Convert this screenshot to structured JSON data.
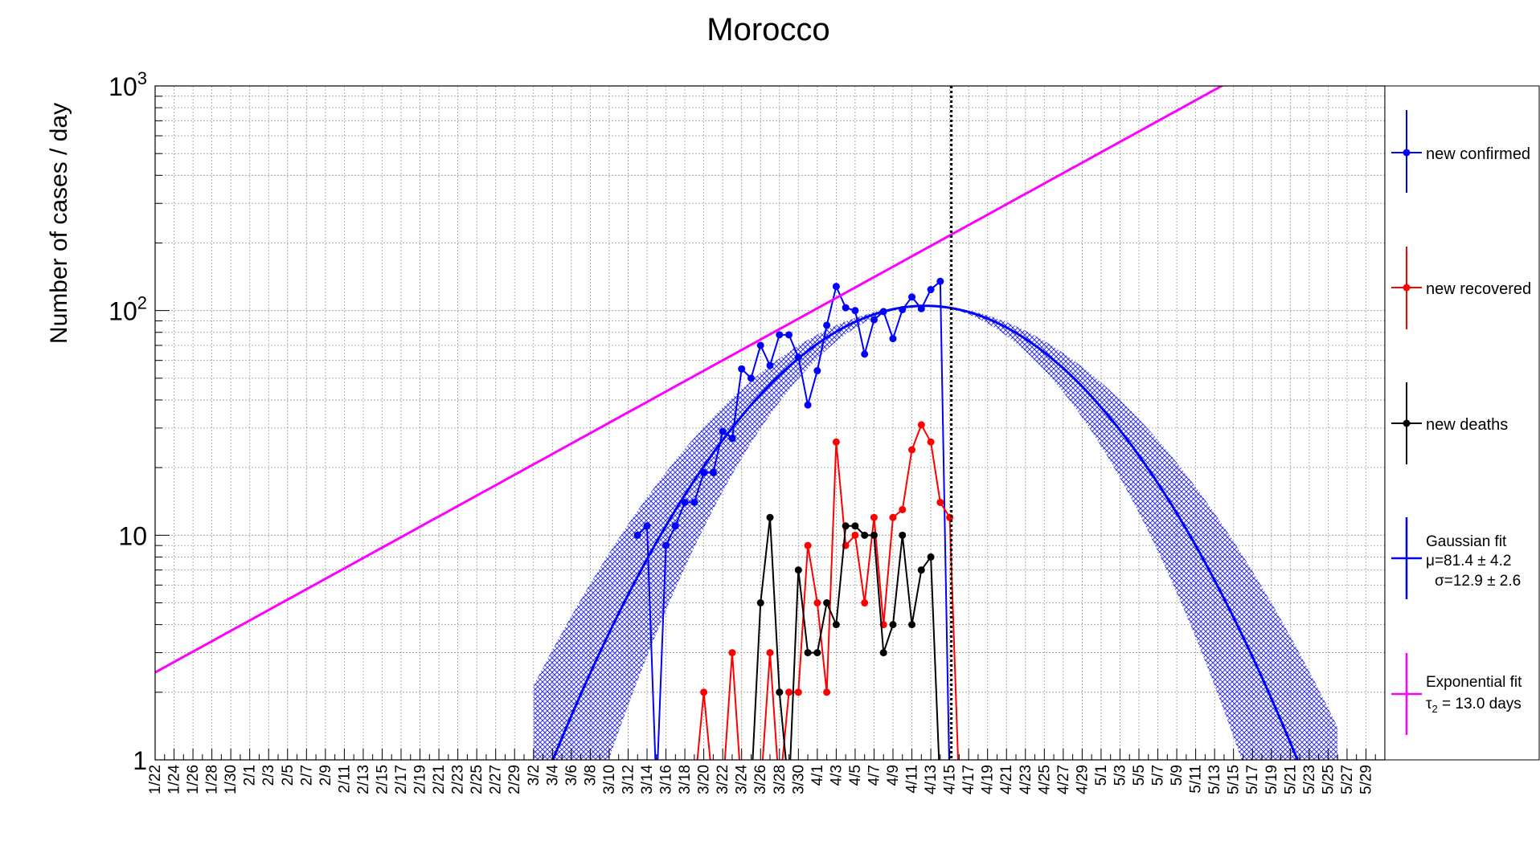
{
  "chart_data": {
    "type": "line",
    "title": "Morocco",
    "ylabel": "Number of cases / day",
    "xlabel": "",
    "yscale": "log",
    "ylim": [
      1,
      1000
    ],
    "xlim_days": [
      0,
      130
    ],
    "y_ticks": [
      {
        "value": 1,
        "base": "1",
        "exp": ""
      },
      {
        "value": 10,
        "base": "10",
        "exp": ""
      },
      {
        "value": 100,
        "base": "10",
        "exp": "2"
      },
      {
        "value": 1000,
        "base": "10",
        "exp": "3"
      }
    ],
    "date_labels": [
      "1/22",
      "1/24",
      "1/26",
      "1/28",
      "1/30",
      "2/1",
      "2/3",
      "2/5",
      "2/7",
      "2/9",
      "2/11",
      "2/13",
      "2/15",
      "2/17",
      "2/19",
      "2/21",
      "2/23",
      "2/25",
      "2/27",
      "2/29",
      "3/2",
      "3/4",
      "3/6",
      "3/8",
      "3/10",
      "3/12",
      "3/14",
      "3/16",
      "3/18",
      "3/20",
      "3/22",
      "3/24",
      "3/26",
      "3/28",
      "3/30",
      "4/1",
      "4/3",
      "4/5",
      "4/7",
      "4/9",
      "4/11",
      "4/13",
      "4/15",
      "4/17",
      "4/19",
      "4/21",
      "4/23",
      "4/25",
      "4/27",
      "4/29",
      "5/1",
      "5/3",
      "5/5",
      "5/7",
      "5/9",
      "5/11",
      "5/13",
      "5/15",
      "5/17",
      "5/19",
      "5/21",
      "5/23",
      "5/25",
      "5/27",
      "5/29"
    ],
    "date_label_days": [
      0,
      2,
      4,
      6,
      8,
      10,
      12,
      14,
      16,
      18,
      20,
      22,
      24,
      26,
      28,
      30,
      32,
      34,
      36,
      38,
      40,
      42,
      44,
      46,
      48,
      50,
      52,
      54,
      56,
      58,
      60,
      62,
      64,
      66,
      68,
      70,
      72,
      74,
      76,
      78,
      80,
      82,
      84,
      86,
      88,
      90,
      92,
      94,
      96,
      98,
      100,
      102,
      104,
      106,
      108,
      110,
      112,
      114,
      116,
      118,
      120,
      122,
      124,
      126,
      128
    ],
    "current_date": "4/15",
    "grid": true,
    "legend_position": "right",
    "series": [
      {
        "name": "new confirmed",
        "color": "#0000ff",
        "points": [
          [
            "3/13",
            10
          ],
          [
            "3/14",
            11
          ],
          [
            "3/15",
            0
          ],
          [
            "3/16",
            9
          ],
          [
            "3/17",
            11
          ],
          [
            "3/18",
            14
          ],
          [
            "3/19",
            14
          ],
          [
            "3/20",
            19
          ],
          [
            "3/21",
            19
          ],
          [
            "3/22",
            29
          ],
          [
            "3/23",
            27
          ],
          [
            "3/24",
            55
          ],
          [
            "3/25",
            50
          ],
          [
            "3/26",
            70
          ],
          [
            "3/27",
            57
          ],
          [
            "3/28",
            78
          ],
          [
            "3/29",
            78
          ],
          [
            "3/30",
            62
          ],
          [
            "3/31",
            38
          ],
          [
            "4/1",
            54
          ],
          [
            "4/2",
            86
          ],
          [
            "4/3",
            128
          ],
          [
            "4/4",
            103
          ],
          [
            "4/5",
            100
          ],
          [
            "4/6",
            64
          ],
          [
            "4/7",
            91
          ],
          [
            "4/8",
            99
          ],
          [
            "4/9",
            75
          ],
          [
            "4/10",
            101
          ],
          [
            "4/11",
            115
          ],
          [
            "4/12",
            102
          ],
          [
            "4/13",
            124
          ],
          [
            "4/14",
            135
          ],
          [
            "4/15",
            0
          ]
        ]
      },
      {
        "name": "new recovered",
        "color": "#ff0000",
        "points": [
          [
            "3/19",
            0
          ],
          [
            "3/20",
            2
          ],
          [
            "3/21",
            0
          ],
          [
            "3/22",
            0
          ],
          [
            "3/23",
            3
          ],
          [
            "3/24",
            0
          ],
          [
            "3/25",
            0
          ],
          [
            "3/26",
            0
          ],
          [
            "3/27",
            3
          ],
          [
            "3/28",
            0
          ],
          [
            "3/29",
            2
          ],
          [
            "3/30",
            2
          ],
          [
            "3/31",
            9
          ],
          [
            "4/1",
            5
          ],
          [
            "4/2",
            2
          ],
          [
            "4/3",
            26
          ],
          [
            "4/4",
            9
          ],
          [
            "4/5",
            10
          ],
          [
            "4/6",
            5
          ],
          [
            "4/7",
            12
          ],
          [
            "4/8",
            4
          ],
          [
            "4/9",
            12
          ],
          [
            "4/10",
            13
          ],
          [
            "4/11",
            24
          ],
          [
            "4/12",
            31
          ],
          [
            "4/13",
            26
          ],
          [
            "4/14",
            14
          ],
          [
            "4/15",
            12
          ],
          [
            "4/16",
            0
          ]
        ]
      },
      {
        "name": "new deaths",
        "color": "#000000",
        "points": [
          [
            "3/24",
            0
          ],
          [
            "3/25",
            0
          ],
          [
            "3/26",
            5
          ],
          [
            "3/27",
            12
          ],
          [
            "3/28",
            2
          ],
          [
            "3/29",
            0
          ],
          [
            "3/30",
            7
          ],
          [
            "3/31",
            3
          ],
          [
            "4/1",
            3
          ],
          [
            "4/2",
            5
          ],
          [
            "4/3",
            4
          ],
          [
            "4/4",
            11
          ],
          [
            "4/5",
            11
          ],
          [
            "4/6",
            10
          ],
          [
            "4/7",
            10
          ],
          [
            "4/8",
            3
          ],
          [
            "4/9",
            4
          ],
          [
            "4/10",
            10
          ],
          [
            "4/11",
            4
          ],
          [
            "4/12",
            7
          ],
          [
            "4/13",
            8
          ],
          [
            "4/14",
            0
          ]
        ]
      }
    ],
    "fits": {
      "gaussian": {
        "color": "#0000ff",
        "legend_lines": [
          "Gaussian fit",
          "μ=81.4 ± 4.2",
          "σ=12.9 ± 2.6"
        ],
        "mu_days": 81.4,
        "sigma_days": 12.9,
        "peak": 105,
        "band_sigma_scale_low": 0.85,
        "band_sigma_scale_high": 1.15
      },
      "exponential": {
        "color": "#ff00ff",
        "legend_title": "Exponential fit",
        "legend_tau_symbol": "τ",
        "legend_tau_sub": "2",
        "legend_tau_rest": " = 13.0 days",
        "doubling_days": 13.0,
        "value_at_start": 2.45
      }
    }
  }
}
